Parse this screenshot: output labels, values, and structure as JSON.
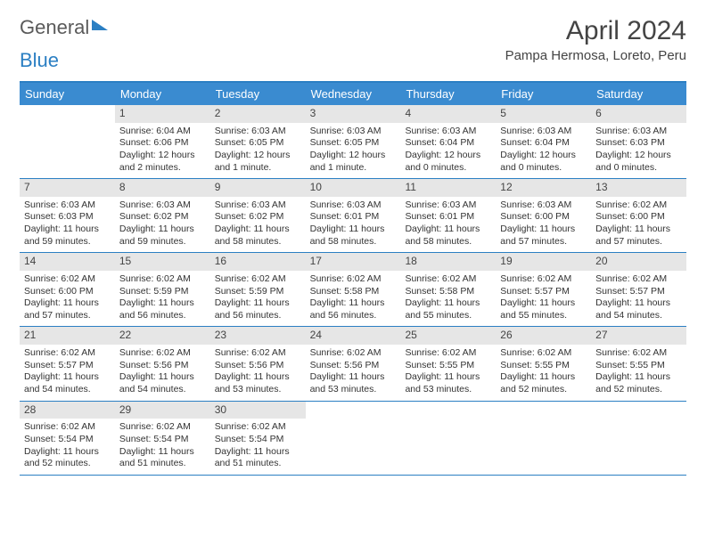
{
  "logo": {
    "text_general": "General",
    "text_blue": "Blue"
  },
  "title": "April 2024",
  "location": "Pampa Hermosa, Loreto, Peru",
  "colors": {
    "header_bg": "#3a8bd0",
    "accent_border": "#2b7fc3",
    "date_bg": "#e6e6e6",
    "text": "#333333"
  },
  "day_names": [
    "Sunday",
    "Monday",
    "Tuesday",
    "Wednesday",
    "Thursday",
    "Friday",
    "Saturday"
  ],
  "weeks": [
    [
      {
        "empty": true
      },
      {
        "d": "1",
        "sr": "6:04 AM",
        "ss": "6:06 PM",
        "dl": "12 hours and 2 minutes."
      },
      {
        "d": "2",
        "sr": "6:03 AM",
        "ss": "6:05 PM",
        "dl": "12 hours and 1 minute."
      },
      {
        "d": "3",
        "sr": "6:03 AM",
        "ss": "6:05 PM",
        "dl": "12 hours and 1 minute."
      },
      {
        "d": "4",
        "sr": "6:03 AM",
        "ss": "6:04 PM",
        "dl": "12 hours and 0 minutes."
      },
      {
        "d": "5",
        "sr": "6:03 AM",
        "ss": "6:04 PM",
        "dl": "12 hours and 0 minutes."
      },
      {
        "d": "6",
        "sr": "6:03 AM",
        "ss": "6:03 PM",
        "dl": "12 hours and 0 minutes."
      }
    ],
    [
      {
        "d": "7",
        "sr": "6:03 AM",
        "ss": "6:03 PM",
        "dl": "11 hours and 59 minutes."
      },
      {
        "d": "8",
        "sr": "6:03 AM",
        "ss": "6:02 PM",
        "dl": "11 hours and 59 minutes."
      },
      {
        "d": "9",
        "sr": "6:03 AM",
        "ss": "6:02 PM",
        "dl": "11 hours and 58 minutes."
      },
      {
        "d": "10",
        "sr": "6:03 AM",
        "ss": "6:01 PM",
        "dl": "11 hours and 58 minutes."
      },
      {
        "d": "11",
        "sr": "6:03 AM",
        "ss": "6:01 PM",
        "dl": "11 hours and 58 minutes."
      },
      {
        "d": "12",
        "sr": "6:03 AM",
        "ss": "6:00 PM",
        "dl": "11 hours and 57 minutes."
      },
      {
        "d": "13",
        "sr": "6:02 AM",
        "ss": "6:00 PM",
        "dl": "11 hours and 57 minutes."
      }
    ],
    [
      {
        "d": "14",
        "sr": "6:02 AM",
        "ss": "6:00 PM",
        "dl": "11 hours and 57 minutes."
      },
      {
        "d": "15",
        "sr": "6:02 AM",
        "ss": "5:59 PM",
        "dl": "11 hours and 56 minutes."
      },
      {
        "d": "16",
        "sr": "6:02 AM",
        "ss": "5:59 PM",
        "dl": "11 hours and 56 minutes."
      },
      {
        "d": "17",
        "sr": "6:02 AM",
        "ss": "5:58 PM",
        "dl": "11 hours and 56 minutes."
      },
      {
        "d": "18",
        "sr": "6:02 AM",
        "ss": "5:58 PM",
        "dl": "11 hours and 55 minutes."
      },
      {
        "d": "19",
        "sr": "6:02 AM",
        "ss": "5:57 PM",
        "dl": "11 hours and 55 minutes."
      },
      {
        "d": "20",
        "sr": "6:02 AM",
        "ss": "5:57 PM",
        "dl": "11 hours and 54 minutes."
      }
    ],
    [
      {
        "d": "21",
        "sr": "6:02 AM",
        "ss": "5:57 PM",
        "dl": "11 hours and 54 minutes."
      },
      {
        "d": "22",
        "sr": "6:02 AM",
        "ss": "5:56 PM",
        "dl": "11 hours and 54 minutes."
      },
      {
        "d": "23",
        "sr": "6:02 AM",
        "ss": "5:56 PM",
        "dl": "11 hours and 53 minutes."
      },
      {
        "d": "24",
        "sr": "6:02 AM",
        "ss": "5:56 PM",
        "dl": "11 hours and 53 minutes."
      },
      {
        "d": "25",
        "sr": "6:02 AM",
        "ss": "5:55 PM",
        "dl": "11 hours and 53 minutes."
      },
      {
        "d": "26",
        "sr": "6:02 AM",
        "ss": "5:55 PM",
        "dl": "11 hours and 52 minutes."
      },
      {
        "d": "27",
        "sr": "6:02 AM",
        "ss": "5:55 PM",
        "dl": "11 hours and 52 minutes."
      }
    ],
    [
      {
        "d": "28",
        "sr": "6:02 AM",
        "ss": "5:54 PM",
        "dl": "11 hours and 52 minutes."
      },
      {
        "d": "29",
        "sr": "6:02 AM",
        "ss": "5:54 PM",
        "dl": "11 hours and 51 minutes."
      },
      {
        "d": "30",
        "sr": "6:02 AM",
        "ss": "5:54 PM",
        "dl": "11 hours and 51 minutes."
      },
      {
        "empty": true
      },
      {
        "empty": true
      },
      {
        "empty": true
      },
      {
        "empty": true
      }
    ]
  ],
  "labels": {
    "sunrise": "Sunrise:",
    "sunset": "Sunset:",
    "daylight": "Daylight:"
  }
}
